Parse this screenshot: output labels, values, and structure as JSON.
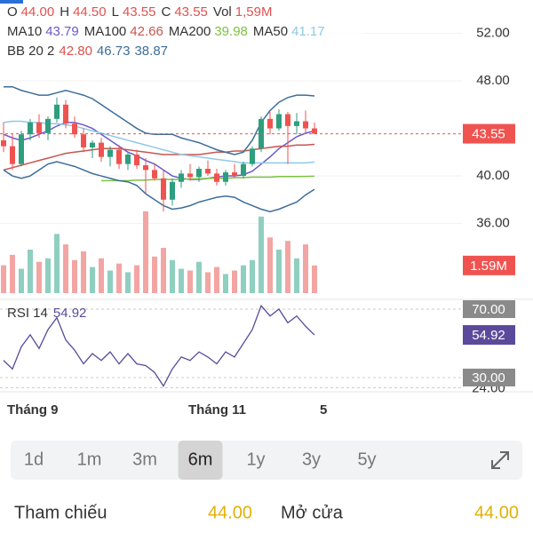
{
  "legend": {
    "ohlc": [
      {
        "label": "O",
        "value": "44.00"
      },
      {
        "label": "H",
        "value": "44.50"
      },
      {
        "label": "L",
        "value": "43.55"
      },
      {
        "label": "C",
        "value": "43.55"
      },
      {
        "label": "Vol",
        "value": "1,59M"
      }
    ],
    "value_color": "#e0524f",
    "bb": {
      "label": "BB 20 2",
      "values": [
        "42.80",
        "46.73",
        "38.87"
      ],
      "colors": [
        "#d9534f",
        "#3d6d99",
        "#3d6d99"
      ]
    },
    "rsi_label": "RSI 14"
  },
  "ui": {
    "periods": [
      "1d",
      "1m",
      "3m",
      "6m",
      "1y",
      "3y",
      "5y"
    ],
    "selected_period": 3,
    "stats": [
      {
        "label": "Tham chiếu",
        "value": "44.00"
      },
      {
        "label": "Mở cửa",
        "value": "44.00"
      }
    ],
    "stat_color": "#e2b007"
  },
  "chart_data": {
    "type": "candlestick",
    "x_labels": [
      "Tháng 9",
      "Tháng 11",
      "5"
    ],
    "up_color": "#2e9e7e",
    "down_color": "#ef5350",
    "volume_up_color": "#8fcfbf",
    "volume_down_color": "#f3a5a3",
    "rsi_color": "#5b4a9b",
    "label_box_color": "#8a8a8a",
    "open": [
      43.0,
      42.5,
      41.0,
      43.5,
      44.5,
      43.6,
      44.8,
      46.0,
      44.4,
      43.5,
      42.4,
      42.8,
      41.6,
      42.2,
      41.0,
      41.8,
      40.9,
      40.5,
      39.8,
      38.0,
      39.5,
      40.2,
      39.9,
      40.6,
      40.2,
      39.5,
      40.3,
      40.0,
      41.0,
      42.3,
      44.8,
      44.0,
      45.2,
      44.2,
      44.6,
      44.0
    ],
    "high": [
      44.5,
      43.5,
      43.8,
      44.8,
      45.2,
      45.0,
      46.6,
      46.4,
      45.0,
      44.0,
      43.0,
      43.2,
      42.5,
      42.6,
      42.0,
      42.2,
      41.5,
      41.0,
      40.5,
      39.8,
      40.5,
      41.0,
      40.8,
      41.3,
      40.6,
      40.5,
      41.0,
      41.2,
      42.5,
      45.0,
      45.4,
      45.6,
      45.4,
      45.3,
      45.5,
      44.5
    ],
    "low": [
      42.0,
      40.5,
      40.8,
      43.0,
      43.2,
      43.0,
      44.5,
      44.0,
      43.2,
      42.0,
      41.5,
      41.2,
      40.8,
      40.6,
      40.5,
      40.6,
      38.5,
      39.6,
      37.0,
      37.5,
      39.0,
      39.6,
      39.5,
      40.0,
      39.2,
      39.2,
      39.8,
      39.8,
      40.8,
      42.0,
      43.5,
      43.8,
      41.0,
      43.5,
      43.6,
      43.55
    ],
    "close": [
      42.5,
      41.0,
      43.5,
      44.5,
      43.6,
      44.8,
      46.0,
      44.4,
      43.5,
      42.4,
      42.8,
      41.6,
      42.2,
      41.0,
      41.8,
      40.9,
      40.5,
      39.8,
      38.0,
      39.5,
      40.2,
      39.9,
      40.6,
      40.2,
      39.5,
      40.3,
      40.0,
      41.0,
      42.3,
      44.8,
      44.0,
      45.2,
      44.2,
      44.6,
      44.0,
      43.55
    ],
    "volume": [
      1600000,
      2200000,
      1400000,
      2500000,
      1800000,
      2000000,
      3400000,
      2800000,
      1900000,
      2400000,
      1500000,
      2000000,
      1300000,
      1700000,
      1200000,
      1600000,
      4700000,
      2100000,
      2600000,
      1900000,
      1400000,
      1300000,
      1800000,
      1200000,
      1500000,
      1100000,
      1300000,
      1600000,
      1900000,
      4400000,
      3200000,
      2500000,
      3000000,
      2000000,
      2800000,
      1590000
    ],
    "last_volume_label": "1.59M",
    "rsi": [
      40,
      35,
      48,
      55,
      47,
      58,
      65,
      52,
      46,
      38,
      44,
      40,
      45,
      38,
      44,
      38,
      37,
      33,
      25,
      35,
      42,
      40,
      45,
      42,
      38,
      45,
      42,
      50,
      58,
      72,
      66,
      70,
      62,
      66,
      60,
      54.92
    ],
    "series": [
      {
        "name": "MA10",
        "value_label": "43.79",
        "color": "#6a5acd",
        "values": [
          43.5,
          43.2,
          43.0,
          43.2,
          43.5,
          43.8,
          44.2,
          44.5,
          44.5,
          44.3,
          44.0,
          43.5,
          43.0,
          42.5,
          42.0,
          41.7,
          41.3,
          41.0,
          40.5,
          40.0,
          39.8,
          39.7,
          39.7,
          39.8,
          39.9,
          40.0,
          40.0,
          40.1,
          40.4,
          41.0,
          41.6,
          42.3,
          42.8,
          43.3,
          43.6,
          43.79
        ]
      },
      {
        "name": "MA100",
        "value_label": "42.66",
        "color": "#c8554f",
        "values": [
          40.5,
          40.7,
          40.9,
          41.1,
          41.3,
          41.5,
          41.7,
          41.9,
          42.0,
          42.1,
          42.2,
          42.3,
          42.3,
          42.3,
          42.2,
          42.1,
          42.0,
          41.9,
          41.8,
          41.8,
          41.8,
          41.8,
          41.8,
          41.9,
          42.0,
          42.0,
          42.1,
          42.1,
          42.2,
          42.3,
          42.4,
          42.5,
          42.5,
          42.6,
          42.6,
          42.66
        ]
      },
      {
        "name": "MA200",
        "value_label": "39.98",
        "color": "#7cc243",
        "values": [
          null,
          null,
          null,
          null,
          null,
          null,
          null,
          null,
          null,
          null,
          null,
          39.6,
          39.6,
          39.6,
          39.6,
          39.65,
          39.65,
          39.7,
          39.7,
          39.7,
          39.7,
          39.75,
          39.75,
          39.8,
          39.8,
          39.8,
          39.85,
          39.85,
          39.9,
          39.9,
          39.9,
          39.95,
          39.95,
          39.95,
          39.96,
          39.98
        ]
      },
      {
        "name": "MA50",
        "value_label": "41.17",
        "color": "#8fc9e6",
        "values": [
          44.5,
          44.6,
          44.6,
          44.5,
          44.5,
          44.4,
          44.4,
          44.3,
          44.2,
          44.0,
          43.8,
          43.6,
          43.4,
          43.2,
          43.0,
          42.8,
          42.6,
          42.4,
          42.2,
          42.0,
          41.8,
          41.7,
          41.6,
          41.5,
          41.4,
          41.3,
          41.2,
          41.1,
          41.1,
          41.1,
          41.1,
          41.1,
          41.1,
          41.1,
          41.1,
          41.17
        ]
      },
      {
        "color": "#3d6d99",
        "values": [
          47.5,
          47.5,
          47.2,
          47.0,
          46.8,
          46.8,
          47.0,
          47.2,
          47.0,
          46.8,
          46.5,
          46.0,
          45.5,
          45.0,
          44.5,
          44.0,
          43.6,
          43.5,
          43.5,
          43.5,
          43.2,
          43.0,
          42.8,
          42.5,
          42.2,
          42.0,
          41.8,
          42.0,
          43.0,
          44.5,
          45.5,
          46.2,
          46.6,
          46.8,
          46.8,
          46.73
        ]
      },
      {
        "color": "#3d6d99",
        "values": [
          40.5,
          40.0,
          39.8,
          40.0,
          40.5,
          41.0,
          41.2,
          41.0,
          40.8,
          40.5,
          40.2,
          40.0,
          39.8,
          39.6,
          39.5,
          39.2,
          38.5,
          38.0,
          37.5,
          37.2,
          37.3,
          37.5,
          37.8,
          38.0,
          38.2,
          38.3,
          38.2,
          37.8,
          37.5,
          37.2,
          37.0,
          37.2,
          37.5,
          37.8,
          38.4,
          38.87
        ]
      }
    ],
    "ylim": [
      29.76,
      54.06
    ],
    "yticks": [
      {
        "value": 52,
        "label": "52.00"
      },
      {
        "value": 48,
        "label": "48.00"
      },
      {
        "value": 40,
        "label": "40.00"
      },
      {
        "value": 36,
        "label": "36.00"
      }
    ],
    "volume_lim": [
      0,
      5000000
    ],
    "rsi_lim": [
      22.2,
      74.16
    ],
    "rsi_ticks": [
      {
        "value": 24,
        "label": "24.00"
      },
      {
        "value": 70,
        "label": "70.00"
      },
      {
        "value": 30,
        "label": "30.00"
      }
    ]
  }
}
